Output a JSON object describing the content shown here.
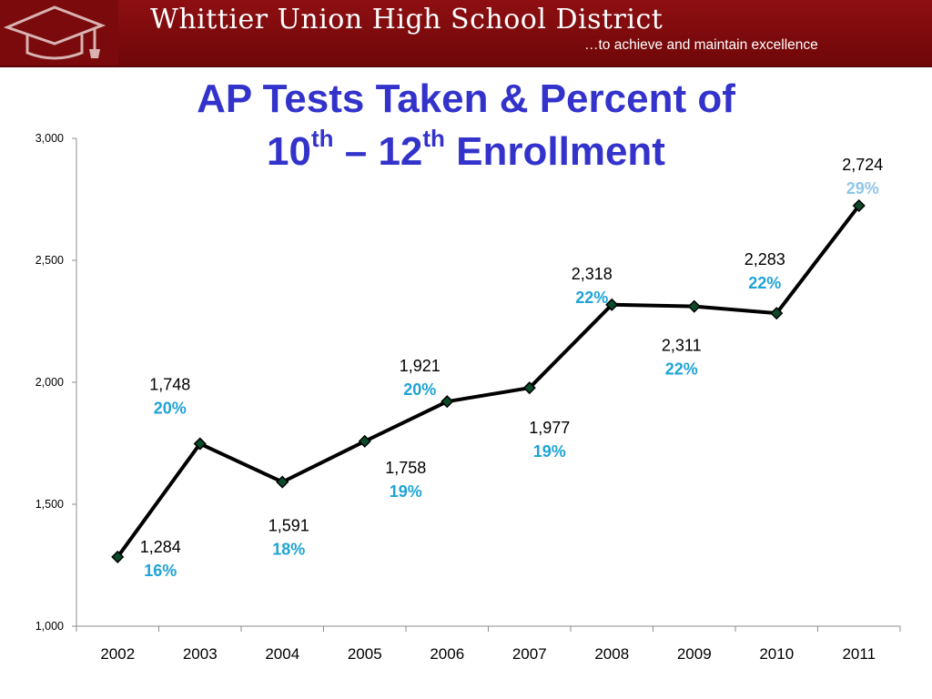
{
  "header": {
    "district_name": "Whittier Union High School District",
    "tagline": "…to achieve and maintain excellence"
  },
  "title": {
    "line1": "AP Tests Taken & Percent of",
    "line2_a": "10",
    "line2_a_sup": "th",
    "line2_dash": " – ",
    "line2_b": "12",
    "line2_b_sup": "th",
    "line2_c": " Enrollment"
  },
  "colors": {
    "banner": "#7a0a0b",
    "title": "#3333cc",
    "line": "#000000",
    "marker": "#0c4a2a",
    "value_label": "#000000",
    "percent_label": "#1fa3d6",
    "percent_label_2011": "#8fc6ea"
  },
  "chart_data": {
    "type": "line",
    "categories": [
      "2002",
      "2003",
      "2004",
      "2005",
      "2006",
      "2007",
      "2008",
      "2009",
      "2010",
      "2011"
    ],
    "series": [
      {
        "values": [
          1284,
          1748,
          1591,
          1758,
          1921,
          1977,
          2318,
          2311,
          2283,
          2724
        ]
      }
    ],
    "value_labels": [
      "1,284",
      "1,748",
      "1,591",
      "1,758",
      "1,921",
      "1,977",
      "2,318",
      "2,311",
      "2,283",
      "2,724"
    ],
    "percent_labels": [
      "16%",
      "20%",
      "18%",
      "19%",
      "20%",
      "19%",
      "22%",
      "22%",
      "22%",
      "29%"
    ],
    "ylim": [
      1000,
      3000
    ],
    "yticks": [
      1000,
      1500,
      2000,
      2500,
      3000
    ],
    "ytick_labels": [
      "1,000",
      "1,500",
      "2,000",
      "2,500",
      "3,000"
    ],
    "grid": false,
    "legend": "none"
  }
}
